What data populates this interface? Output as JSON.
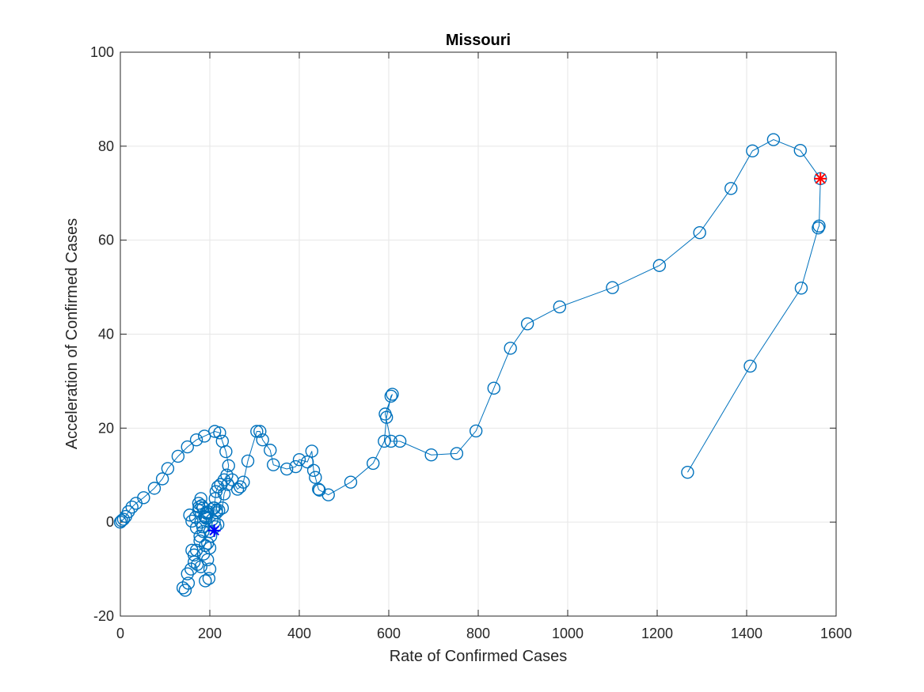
{
  "chart_data": {
    "type": "scatter",
    "title": "Missouri",
    "xlabel": "Rate of Confirmed Cases",
    "ylabel": "Acceleration of Confirmed Cases",
    "xlim": [
      0,
      1600
    ],
    "ylim": [
      -20,
      100
    ],
    "xticks": [
      0,
      200,
      400,
      600,
      800,
      1000,
      1200,
      1400,
      1600
    ],
    "yticks": [
      -20,
      0,
      20,
      40,
      60,
      80,
      100
    ],
    "xtick_labels": [
      "0",
      "200",
      "400",
      "600",
      "800",
      "1000",
      "1200",
      "1400",
      "1600"
    ],
    "ytick_labels": [
      "-20",
      "0",
      "20",
      "40",
      "60",
      "80",
      "100"
    ],
    "grid": true,
    "series": [
      {
        "marker": "circle",
        "line": "solid",
        "color": "#0072BD",
        "x": [
          0,
          3,
          7,
          12,
          18,
          26,
          35,
          52,
          76,
          94,
          106,
          129,
          150,
          170,
          188,
          211,
          222,
          228,
          236,
          242,
          238,
          232,
          224,
          218,
          214,
          212,
          210,
          215,
          220,
          228,
          232,
          240,
          250,
          262,
          268,
          275,
          285,
          305,
          312,
          318,
          335,
          342,
          372,
          392,
          400,
          418,
          428,
          432,
          436,
          443,
          445,
          465,
          515,
          565,
          590,
          595,
          605,
          608,
          592,
          605,
          625,
          695,
          752,
          795,
          835,
          872,
          910,
          982,
          1100,
          1205,
          1295,
          1365,
          1413,
          1460,
          1520,
          1565,
          1562,
          1560,
          1522,
          1408,
          1268
        ],
        "y": [
          0,
          0.3,
          0.6,
          1.2,
          2.2,
          3.2,
          4,
          5.2,
          7.2,
          9.2,
          11.4,
          14,
          16,
          17.5,
          18.3,
          19.3,
          19,
          17.2,
          15,
          12,
          10,
          9,
          8,
          7.5,
          6.5,
          5,
          3,
          2,
          2.5,
          3,
          6,
          8,
          9,
          7,
          7.5,
          8.5,
          13,
          19.3,
          19.3,
          17.5,
          15.3,
          12.2,
          11.3,
          11.8,
          13.3,
          12.8,
          15.1,
          11,
          9.5,
          7,
          6.8,
          5.8,
          8.5,
          12.5,
          17.2,
          22.3,
          26.8,
          27.2,
          23,
          17.2,
          17.2,
          14.3,
          14.6,
          19.4,
          28.5,
          37,
          42.2,
          45.8,
          49.9,
          54.6,
          61.6,
          71,
          79,
          81.4,
          79.1,
          73.1,
          63,
          62.6,
          49.8,
          33.2,
          10.6
        ]
      },
      {
        "marker": "circle",
        "line": "none",
        "color": "#0072BD",
        "x": [
          140,
          145,
          150,
          152,
          155,
          158,
          160,
          160,
          165,
          168,
          172,
          175,
          178,
          180,
          182,
          185,
          188,
          190,
          190,
          192,
          195,
          198,
          200,
          202,
          205,
          208,
          210,
          212,
          215,
          218,
          175,
          180,
          185,
          190,
          195,
          200,
          165,
          170,
          178,
          184,
          192,
          196,
          180,
          186,
          194,
          200,
          170,
          176
        ],
        "y": [
          -14,
          -14.5,
          -11,
          -13,
          1.5,
          -10,
          -6,
          0.2,
          -7,
          1,
          -9,
          2.5,
          -4,
          0,
          3.5,
          -2,
          1.2,
          -12.5,
          -5,
          2,
          -8,
          -12,
          -10,
          -3,
          0.5,
          3,
          0,
          -1,
          2.5,
          -0.5,
          4,
          5,
          3,
          1,
          -4.5,
          -2,
          -8.5,
          -6,
          -3,
          -1,
          0.8,
          2.2,
          -9.5,
          -6.8,
          1.8,
          -5.5,
          -1.2,
          3.2
        ]
      }
    ],
    "start_marker": {
      "x": 210,
      "y": -1.8,
      "color": "#0000FF",
      "marker": "asterisk"
    },
    "end_marker": {
      "x": 1565,
      "y": 73.1,
      "color": "#FF0000",
      "marker": "asterisk-x"
    }
  }
}
